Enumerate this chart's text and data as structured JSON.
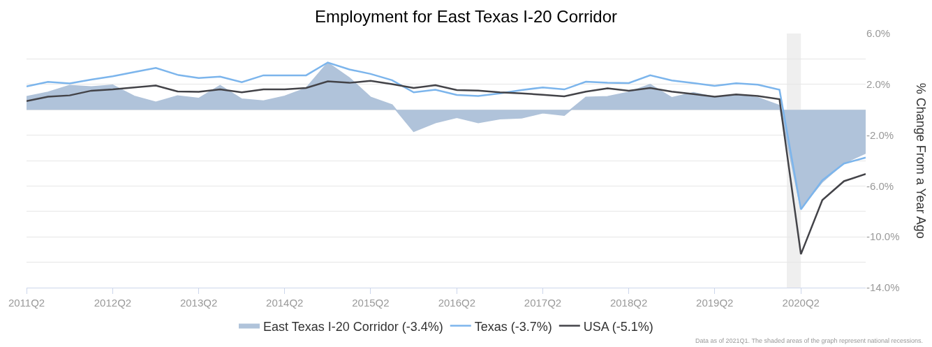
{
  "chart_data": {
    "type": "line",
    "title": "Employment for East Texas I-20 Corridor",
    "ylabel": "% Change From a Year Ago",
    "x": [
      "2011-04",
      "2011-07",
      "2011-10",
      "2012-01",
      "2012-04",
      "2012-07",
      "2012-10",
      "2013-01",
      "2013-04",
      "2013-07",
      "2013-10",
      "2014-01",
      "2014-04",
      "2014-07",
      "2014-10",
      "2015-01",
      "2015-04",
      "2015-07",
      "2015-10",
      "2016-01",
      "2016-04",
      "2016-07",
      "2016-10",
      "2017-01",
      "2017-04",
      "2017-07",
      "2017-10",
      "2018-01",
      "2018-04",
      "2018-07",
      "2018-10",
      "2019-01",
      "2019-04",
      "2019-07",
      "2019-10",
      "2020-01",
      "2020-04",
      "2020-07",
      "2020-10",
      "2021-01"
    ],
    "series": [
      {
        "name": "East Texas I-20 Corridor (-3.4%)",
        "type": "area",
        "color": "#b0c3da",
        "values": [
          1.03,
          1.37,
          1.9,
          1.79,
          1.93,
          1.06,
          0.59,
          1.08,
          0.89,
          1.9,
          0.83,
          0.68,
          1.06,
          1.69,
          3.69,
          2.5,
          0.97,
          0.37,
          -1.7,
          -1.01,
          -0.59,
          -1.01,
          -0.71,
          -0.64,
          -0.24,
          -0.42,
          0.97,
          1.03,
          1.37,
          1.98,
          0.94,
          1.34,
          0.99,
          1.15,
          0.94,
          0.33,
          -7.76,
          -5.67,
          -4.19,
          -3.41
        ]
      },
      {
        "name": "Texas (-3.7%)",
        "color": "#7cb5ec",
        "values": [
          1.84,
          2.19,
          2.07,
          2.37,
          2.63,
          2.96,
          3.29,
          2.75,
          2.5,
          2.61,
          2.17,
          2.71,
          2.7,
          2.71,
          3.72,
          3.17,
          2.82,
          2.33,
          1.37,
          1.57,
          1.17,
          1.08,
          1.29,
          1.55,
          1.76,
          1.6,
          2.21,
          2.12,
          2.1,
          2.71,
          2.31,
          2.1,
          1.88,
          2.09,
          1.97,
          1.58,
          -7.84,
          -5.55,
          -4.23,
          -3.76
        ]
      },
      {
        "name": "USA (-5.1%)",
        "color": "#434348",
        "values": [
          0.68,
          1.03,
          1.13,
          1.5,
          1.6,
          1.76,
          1.9,
          1.44,
          1.41,
          1.6,
          1.37,
          1.6,
          1.6,
          1.72,
          2.24,
          2.12,
          2.28,
          2.02,
          1.72,
          1.93,
          1.55,
          1.51,
          1.37,
          1.29,
          1.18,
          1.06,
          1.43,
          1.69,
          1.5,
          1.72,
          1.43,
          1.23,
          1.03,
          1.2,
          1.08,
          0.83,
          -11.37,
          -7.11,
          -5.62,
          -5.06
        ]
      }
    ],
    "xlim": [
      "2011-04",
      "2021-01"
    ],
    "xticks": [
      {
        "value": "2011-04",
        "label": "2011Q2"
      },
      {
        "value": "2012-04",
        "label": "2012Q2"
      },
      {
        "value": "2013-04",
        "label": "2013Q2"
      },
      {
        "value": "2014-04",
        "label": "2014Q2"
      },
      {
        "value": "2015-04",
        "label": "2015Q2"
      },
      {
        "value": "2016-04",
        "label": "2016Q2"
      },
      {
        "value": "2017-04",
        "label": "2017Q2"
      },
      {
        "value": "2018-04",
        "label": "2018Q2"
      },
      {
        "value": "2019-04",
        "label": "2019Q2"
      },
      {
        "value": "2020-04",
        "label": "2020Q2"
      }
    ],
    "ylim": [
      -14,
      6
    ],
    "yticks": [
      {
        "value": 6,
        "label": "6.0%"
      },
      {
        "value": 4,
        "label": null
      },
      {
        "value": 2,
        "label": "2.0%"
      },
      {
        "value": 0,
        "label": null
      },
      {
        "value": -2,
        "label": "-2.0%"
      },
      {
        "value": -4,
        "label": null
      },
      {
        "value": -6,
        "label": "-6.0%"
      },
      {
        "value": -8,
        "label": null
      },
      {
        "value": -10,
        "label": "-10.0%"
      },
      {
        "value": -12,
        "label": null
      },
      {
        "value": -14,
        "label": "-14.0%"
      }
    ],
    "bands": [
      {
        "axis": "x",
        "from": "2020-02",
        "to": "2020-04",
        "color": "#efefef"
      }
    ],
    "grid": "y",
    "legend": "bottom",
    "marker": "none",
    "annotations": [
      "Data as of 2021Q1. The shaded areas of the graph represent national recessions."
    ]
  }
}
